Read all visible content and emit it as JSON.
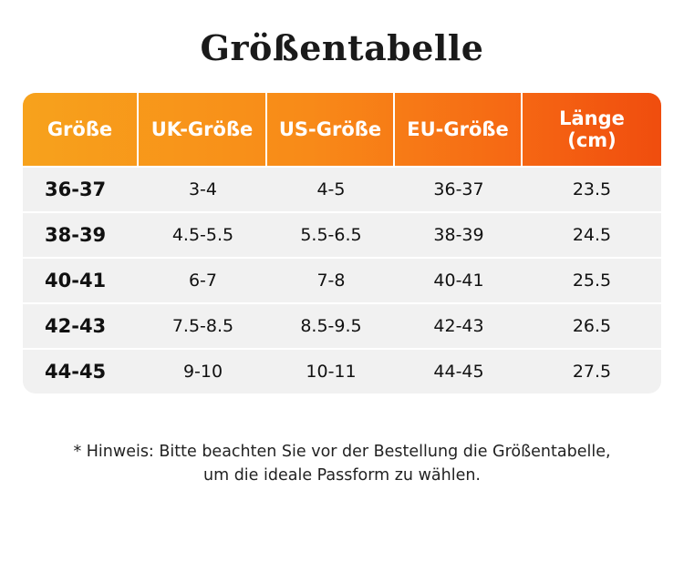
{
  "title": "Größentabelle",
  "table": {
    "headers": [
      "Größe",
      "UK-Größe",
      "US-Größe",
      "EU-Größe",
      "Länge\n(cm)"
    ],
    "rows": [
      [
        "36-37",
        "3-4",
        "4-5",
        "36-37",
        "23.5"
      ],
      [
        "38-39",
        "4.5-5.5",
        "5.5-6.5",
        "38-39",
        "24.5"
      ],
      [
        "40-41",
        "6-7",
        "7-8",
        "40-41",
        "25.5"
      ],
      [
        "42-43",
        "7.5-8.5",
        "8.5-9.5",
        "42-43",
        "26.5"
      ],
      [
        "44-45",
        "9-10",
        "10-11",
        "44-45",
        "27.5"
      ]
    ]
  },
  "note": {
    "line1": "* Hinweis: Bitte beachten Sie vor der Bestellung die Größentabelle,",
    "line2": "um die ideale Passform zu wählen."
  },
  "colors": {
    "header_gradient_start": "#f7a21c",
    "header_gradient_end": "#f04d0e",
    "row_background": "#f1f1f1"
  }
}
